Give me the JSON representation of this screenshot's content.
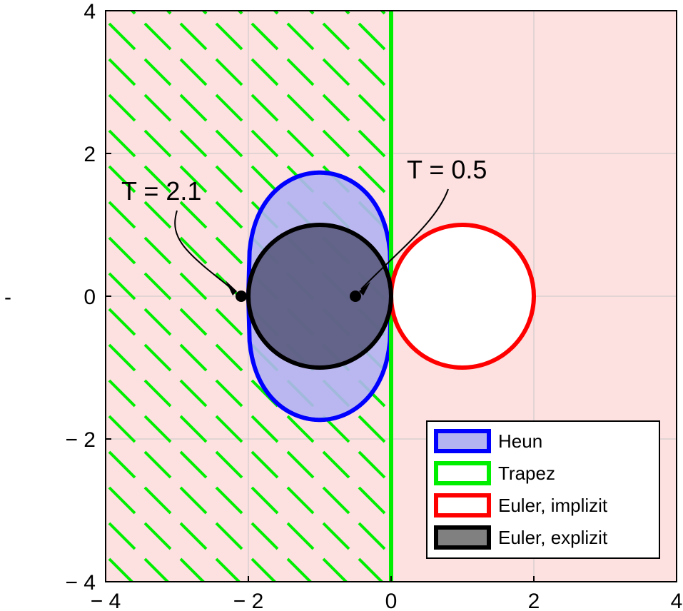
{
  "chart_data": {
    "type": "area",
    "title": "",
    "xlabel": "",
    "ylabel": "",
    "xlim": [
      -4,
      4
    ],
    "ylim": [
      -4,
      4
    ],
    "xticks": [
      -4,
      -2,
      0,
      2,
      4
    ],
    "yticks": [
      -4,
      -2,
      0,
      2,
      4
    ],
    "xtick_labels": [
      "− 4",
      "− 2",
      "0",
      "2",
      "4"
    ],
    "ytick_labels": [
      "− 4",
      "− 2",
      "0",
      "2",
      "4"
    ],
    "ylabel_marker": "-",
    "grid": true,
    "background_color": "#fde0e0",
    "legend_position": "bottom-right",
    "series": [
      {
        "name": "Heun",
        "shape": "stability-region-heun",
        "stroke": "#0000ff",
        "fill": "#b3b3f2",
        "real_range": [
          -2,
          0
        ],
        "imag_extent": 1.732
      },
      {
        "name": "Trapez",
        "shape": "half-plane-re-less-than-0",
        "stroke": "#00ee00",
        "hatch": true,
        "boundary_x": 0
      },
      {
        "name": "Euler, implizit",
        "shape": "circle",
        "stroke": "#ff0000",
        "fill": "#ffffff",
        "center": [
          1,
          0
        ],
        "radius": 1
      },
      {
        "name": "Euler, explizit",
        "shape": "circle",
        "stroke": "#000000",
        "fill": "#555577",
        "center": [
          -1,
          0
        ],
        "radius": 1
      }
    ],
    "annotations": [
      {
        "text": "T  =  2.1",
        "point": [
          -2.1,
          0
        ]
      },
      {
        "text": "T  =  0.5",
        "point": [
          -0.5,
          0
        ]
      }
    ]
  }
}
